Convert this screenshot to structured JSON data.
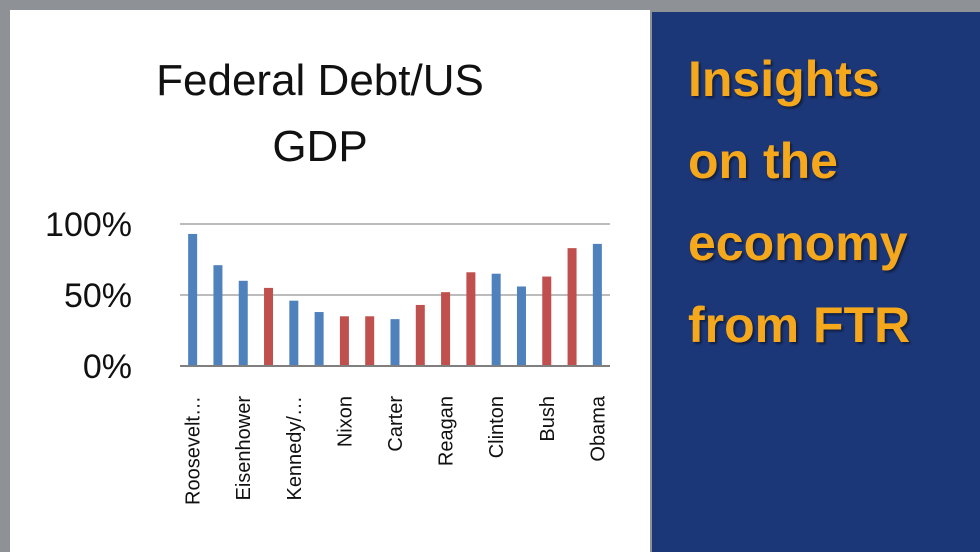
{
  "promo": {
    "lines": [
      "Insights",
      "on the",
      "economy",
      "from FTR"
    ],
    "text_color": "#f5a81c",
    "background": "#1c3778"
  },
  "chart_data": {
    "type": "bar",
    "title_lines": [
      "Federal Debt/US",
      "GDP"
    ],
    "xlabel": "",
    "ylabel": "",
    "ylim": [
      0,
      100
    ],
    "yticks": [
      "0%",
      "50%",
      "100%"
    ],
    "grid": true,
    "categories": [
      "Roosevelt…",
      "",
      "Eisenhower",
      "",
      "Kennedy/…",
      "",
      "Nixon",
      "",
      "Carter",
      "",
      "Reagan",
      "",
      "Clinton",
      "",
      "Bush",
      "",
      "Obama"
    ],
    "values": [
      93,
      71,
      60,
      55,
      46,
      38,
      35,
      35,
      33,
      43,
      52,
      66,
      65,
      56,
      63,
      83,
      86
    ],
    "bar_colors": [
      "#4f81bd",
      "#4f81bd",
      "#4f81bd",
      "#c0504d",
      "#4f81bd",
      "#4f81bd",
      "#c0504d",
      "#c0504d",
      "#4f81bd",
      "#c0504d",
      "#c0504d",
      "#c0504d",
      "#4f81bd",
      "#4f81bd",
      "#c0504d",
      "#c0504d",
      "#4f81bd"
    ],
    "colors": {
      "democrat": "#4f81bd",
      "republican": "#c0504d"
    }
  }
}
